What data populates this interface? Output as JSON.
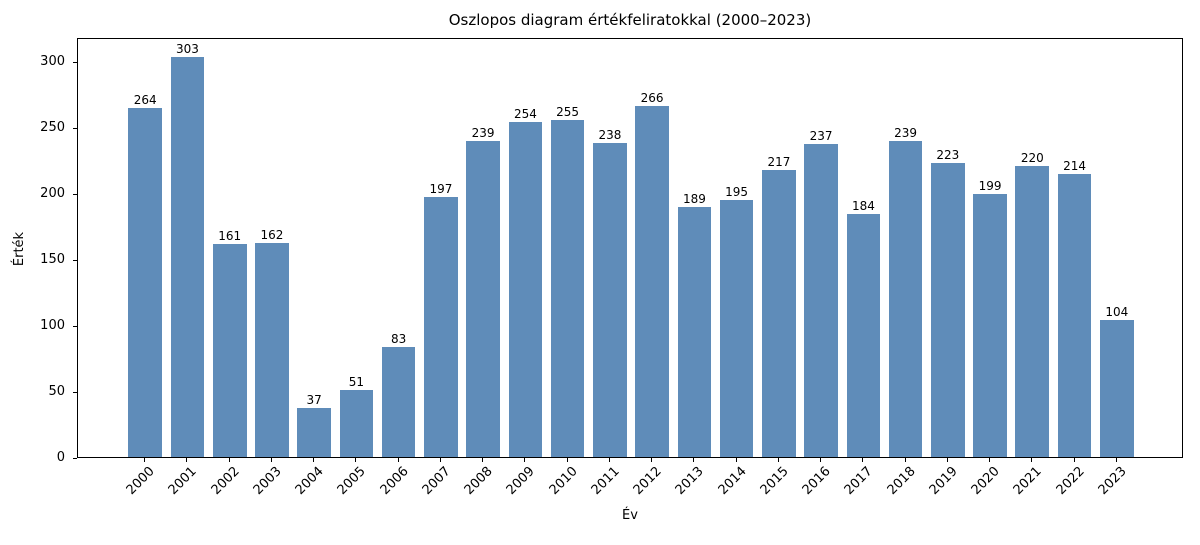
{
  "chart_data": {
    "type": "bar",
    "title": "Oszlopos diagram értékfeliratokkal (2000–2023)",
    "xlabel": "Év",
    "ylabel": "Érték",
    "categories": [
      "2000",
      "2001",
      "2002",
      "2003",
      "2004",
      "2005",
      "2006",
      "2007",
      "2008",
      "2009",
      "2010",
      "2011",
      "2012",
      "2013",
      "2014",
      "2015",
      "2016",
      "2017",
      "2018",
      "2019",
      "2020",
      "2021",
      "2022",
      "2023"
    ],
    "values": [
      264,
      303,
      161,
      162,
      37,
      51,
      83,
      197,
      239,
      254,
      255,
      238,
      266,
      189,
      195,
      217,
      237,
      184,
      239,
      223,
      199,
      220,
      214,
      104
    ],
    "yticks": [
      0,
      50,
      100,
      150,
      200,
      250,
      300
    ],
    "ylim": [
      0,
      318
    ],
    "bar_color": "#5f8cb9",
    "value_labels_shown": true,
    "grid": false,
    "legend": null,
    "x_tick_rotation_degrees": 45
  }
}
